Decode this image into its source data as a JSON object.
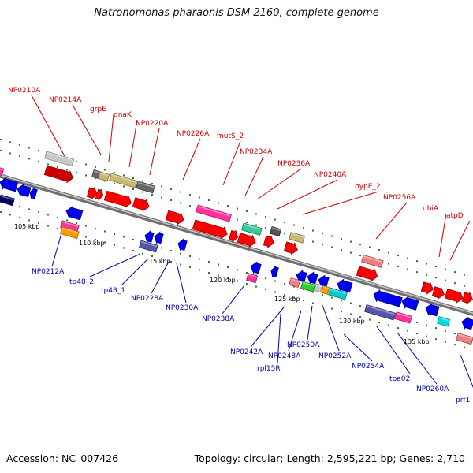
{
  "title": "Natronomonas pharaonis DSM 2160, complete genome",
  "accession": "Accession: NC_007426",
  "topology": "Topology: circular; Length: 2,595,221 bp; Genes: 2,710",
  "colors": {
    "forward_label": "#cc0000",
    "reverse_label": "#0000aa",
    "backbone": "#8a8a8a",
    "tick_dot": "#2a7a2a"
  },
  "kbp_ticks": [
    "105 kbp",
    "110 kbp",
    "115 kbp",
    "120 kbp",
    "125 kbp",
    "130 kbp",
    "135 kbp"
  ],
  "forward_labels": [
    "NP0210A",
    "NP0214A",
    "grpE",
    "dnaK",
    "NP0220A",
    "NP0226A",
    "mutS_2",
    "NP0234A",
    "NP0236A",
    "NP0240A",
    "hypE_2",
    "NP0256A",
    "ubiA",
    "atpD"
  ],
  "reverse_labels": [
    "NP0212A",
    "tp48_2",
    "tp48_1",
    "NP0228A",
    "NP0230A",
    "NP0238A",
    "NP0242A",
    "rpl15R",
    "NP0248A",
    "NP0250A",
    "NP0252A",
    "NP0254A",
    "tpa02",
    "NP0260A",
    "prf1"
  ]
}
